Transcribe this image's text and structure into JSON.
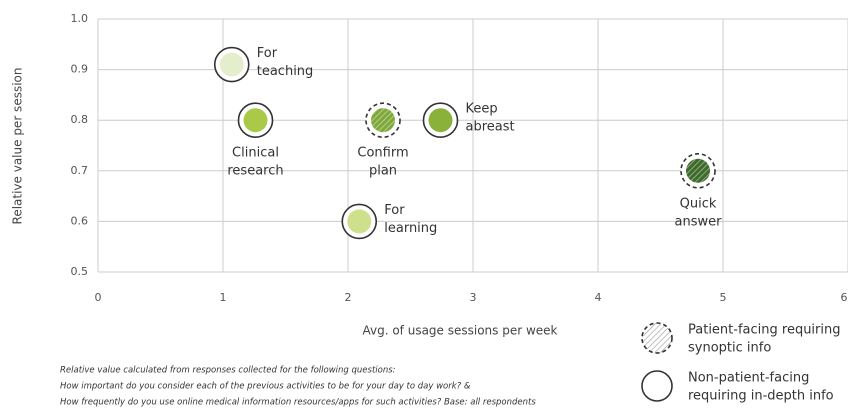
{
  "chart_data": {
    "type": "scatter",
    "x_label": "Avg. of usage sessions per week",
    "y_label": "Relative value per session",
    "xlim": [
      0,
      6
    ],
    "xticks": [
      0,
      1,
      2,
      3,
      4,
      5,
      6
    ],
    "ylim": [
      0.5,
      1.0
    ],
    "yticks": [
      0.5,
      0.6,
      0.7,
      0.8,
      0.9,
      {
        "value": 1,
        "label": "1.0"
      }
    ],
    "grid": true,
    "series": [
      {
        "name": [
          "Patient-facing requiring",
          "synoptic info"
        ],
        "color": "#7fa83a",
        "x": [
          2.28,
          4.8
        ],
        "values": [
          0.8,
          0.7
        ],
        "labels": [
          [
            "Confirm",
            "plan"
          ],
          [
            "Quick",
            "answer"
          ]
        ],
        "point_colors": [
          "#7fa83a",
          "#3e6b2c"
        ]
      },
      {
        "name": [
          "Non-patient-facing",
          "requiring in-depth info"
        ],
        "color": "#a9c947",
        "x": [
          1.07,
          1.26,
          2.74,
          2.09
        ],
        "values": [
          0.91,
          0.8,
          0.8,
          0.6
        ],
        "labels": [
          [
            "For",
            "teaching"
          ],
          [
            "Clinical",
            "research"
          ],
          [
            "Keep",
            "abreast"
          ],
          [
            "For",
            "learning"
          ]
        ],
        "point_colors": [
          "#e4edcc",
          "#a9c947",
          "#8ab23a",
          "#cfe08c"
        ]
      }
    ],
    "notes": [
      "Relative value calculated from responses collected for the following questions:",
      "How important do you consider each of the previous activities to be for your day to day work? &",
      "How frequently do you use online medical information resources/apps for such activities? Base: all respondents"
    ]
  }
}
